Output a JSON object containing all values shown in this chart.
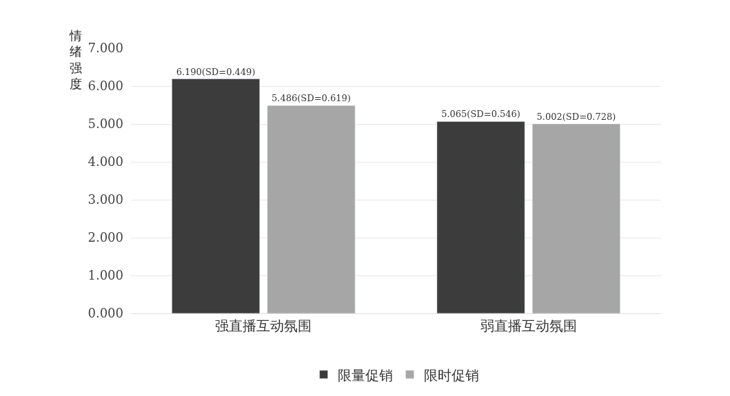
{
  "chart_data": {
    "type": "bar",
    "ylabel": "情绪强度",
    "categories": [
      "强直播互动氛围",
      "弱直播互动氛围"
    ],
    "series": [
      {
        "name": "限量促销",
        "color": "#3c3c3c",
        "values": [
          6.19,
          5.065
        ],
        "value_labels": [
          "6.190(SD=0.449)",
          "5.065(SD=0.546)"
        ]
      },
      {
        "name": "限时促销",
        "color": "#a6a6a6",
        "values": [
          5.486,
          5.002
        ],
        "value_labels": [
          "5.486(SD=0.619)",
          "5.002(SD=0.728)"
        ]
      }
    ],
    "ylim": [
      0,
      7
    ],
    "yticks": [
      {
        "value": 0,
        "label": "0.000"
      },
      {
        "value": 1,
        "label": "1.000"
      },
      {
        "value": 2,
        "label": "2.000"
      },
      {
        "value": 3,
        "label": "3.000"
      },
      {
        "value": 4,
        "label": "4.000"
      },
      {
        "value": 5,
        "label": "5.000"
      },
      {
        "value": 6,
        "label": "6.000"
      },
      {
        "value": 7,
        "label": "7.000"
      }
    ],
    "grid": "y",
    "legend": "bottom"
  }
}
